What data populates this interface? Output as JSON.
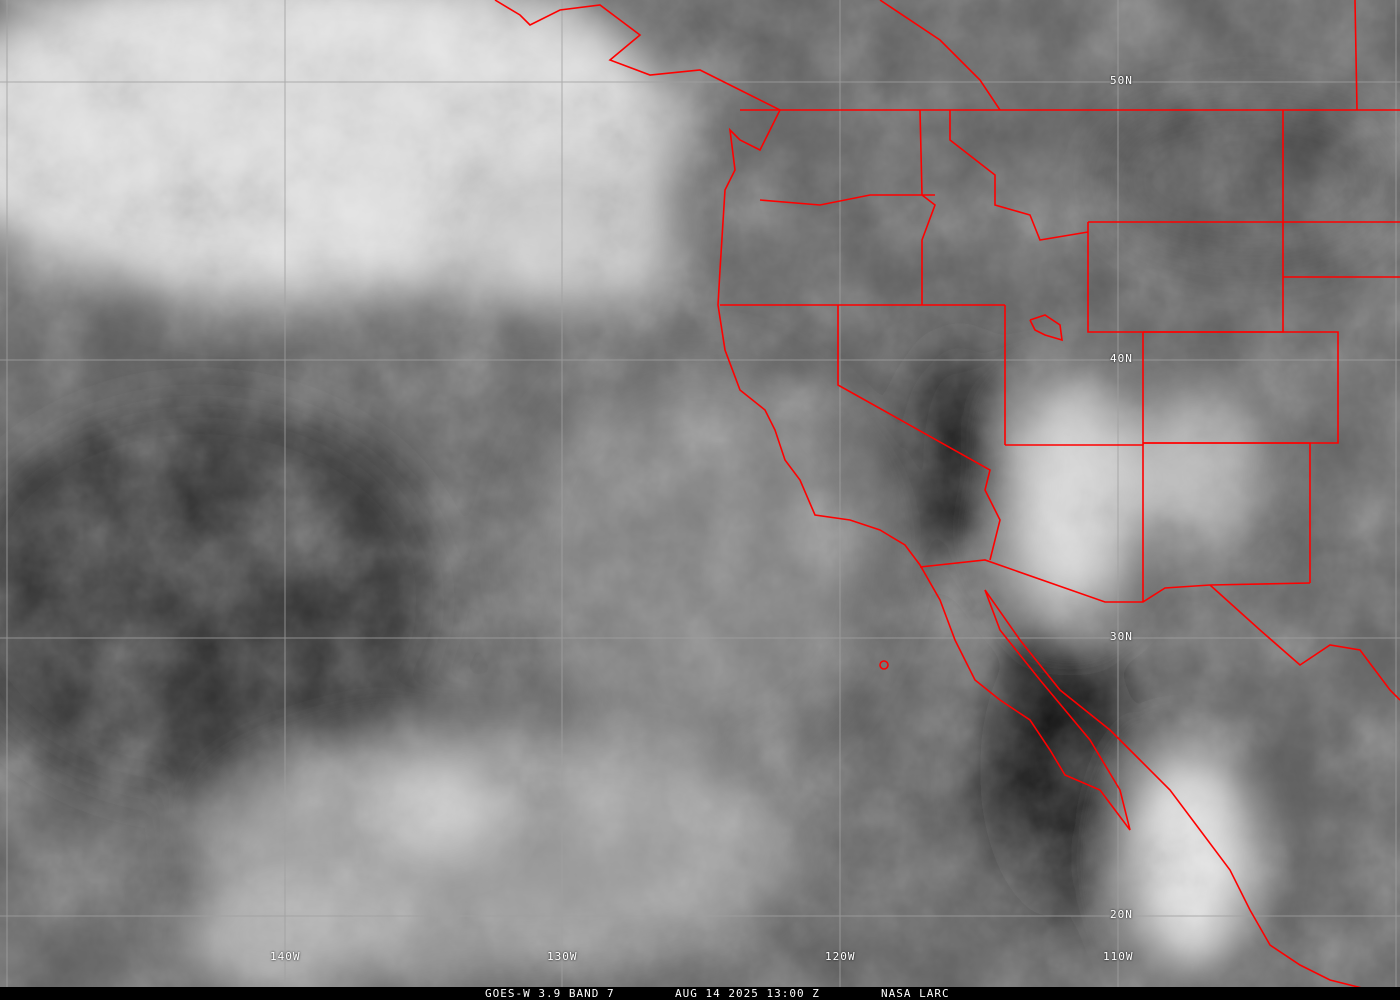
{
  "image": {
    "type": "satellite-infrared",
    "border_color": "#ff0000",
    "grid_color": "#a0a0a0"
  },
  "grid": {
    "longitude_labels": [
      "140W",
      "130W",
      "120W",
      "110W"
    ],
    "latitude_labels": [
      "50N",
      "40N",
      "30N",
      "20N"
    ]
  },
  "caption": {
    "satellite": "GOES-W 3.9 BAND 7",
    "datetime": "AUG 14 2025 13:00 Z",
    "source": "NASA LARC"
  }
}
